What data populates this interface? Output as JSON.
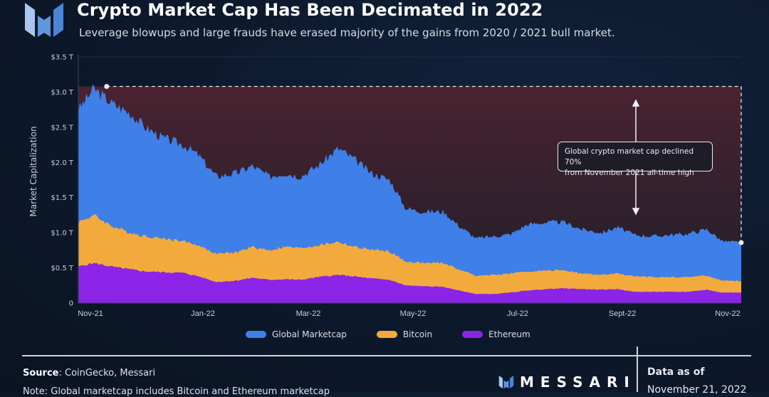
{
  "header": {
    "title": "Crypto Market Cap Has Been Decimated in 2022",
    "subtitle": "Leverage blowups and large frauds have erased majority of the gains from 2020 / 2021 bull market."
  },
  "annotation": {
    "text_line1": "Global crypto market cap declined 70%",
    "text_line2": "from November 2021 all-time high"
  },
  "footer": {
    "source_label": "Source",
    "source_text": ": CoinGecko, Messari",
    "note_text": "Note: Global marketcap includes Bitcoin and Ethereum marketcap",
    "brand": "MESSARI",
    "data_as_of_label": "Data as of",
    "data_as_of_date": "November 21, 2022"
  },
  "colors": {
    "global": "#3f7fe8",
    "bitcoin": "#f3aa3c",
    "ethereum": "#8b24e6",
    "drawdown": "#3a1e26",
    "background": "#0d1a2e"
  },
  "chart_data": {
    "type": "area",
    "title": "Crypto Market Cap Has Been Decimated in 2022",
    "xlabel": "",
    "ylabel": "Market Capitalization",
    "ylim": [
      0,
      3.5
    ],
    "yticks": [
      "0",
      "$0.5 T",
      "$1.0 T",
      "$1.5 T",
      "$2.0 T",
      "$2.5 T",
      "$3.0 T",
      "$3.5 T"
    ],
    "ytick_values": [
      0,
      0.5,
      1.0,
      1.5,
      2.0,
      2.5,
      3.0,
      3.5
    ],
    "xticks": [
      "Nov-21",
      "Jan-22",
      "Mar-22",
      "May-22",
      "Jul-22",
      "Sept-22",
      "Nov-22"
    ],
    "grid": true,
    "legend_position": "bottom",
    "x": [
      "2021-11-01",
      "2021-11-10",
      "2021-11-20",
      "2021-12-01",
      "2021-12-10",
      "2021-12-20",
      "2022-01-01",
      "2022-01-10",
      "2022-01-20",
      "2022-02-01",
      "2022-02-10",
      "2022-02-20",
      "2022-03-01",
      "2022-03-10",
      "2022-03-20",
      "2022-04-01",
      "2022-04-10",
      "2022-04-20",
      "2022-05-01",
      "2022-05-10",
      "2022-05-20",
      "2022-06-01",
      "2022-06-10",
      "2022-06-20",
      "2022-07-01",
      "2022-07-10",
      "2022-07-20",
      "2022-08-01",
      "2022-08-10",
      "2022-08-20",
      "2022-09-01",
      "2022-09-10",
      "2022-09-20",
      "2022-10-01",
      "2022-10-10",
      "2022-10-20",
      "2022-11-01",
      "2022-11-10",
      "2022-11-21"
    ],
    "series": [
      {
        "name": "Global Marketcap",
        "unit": "USD trillion",
        "values": [
          2.75,
          3.05,
          2.85,
          2.7,
          2.5,
          2.35,
          2.25,
          2.1,
          1.8,
          1.85,
          1.95,
          1.8,
          1.85,
          1.8,
          1.95,
          2.2,
          2.05,
          1.85,
          1.75,
          1.35,
          1.3,
          1.3,
          1.1,
          0.92,
          0.95,
          0.98,
          1.12,
          1.15,
          1.15,
          1.05,
          1.0,
          1.08,
          0.97,
          0.95,
          0.97,
          0.98,
          1.05,
          0.88,
          0.86
        ]
      },
      {
        "name": "Bitcoin",
        "unit": "USD trillion",
        "values": [
          1.15,
          1.25,
          1.1,
          1.0,
          0.95,
          0.92,
          0.88,
          0.82,
          0.7,
          0.72,
          0.8,
          0.75,
          0.8,
          0.78,
          0.82,
          0.87,
          0.8,
          0.76,
          0.73,
          0.59,
          0.57,
          0.57,
          0.48,
          0.39,
          0.4,
          0.42,
          0.45,
          0.46,
          0.47,
          0.42,
          0.4,
          0.42,
          0.38,
          0.37,
          0.37,
          0.37,
          0.39,
          0.32,
          0.31
        ]
      },
      {
        "name": "Ethereum",
        "unit": "USD trillion",
        "values": [
          0.52,
          0.57,
          0.52,
          0.48,
          0.45,
          0.44,
          0.43,
          0.38,
          0.3,
          0.32,
          0.36,
          0.33,
          0.34,
          0.33,
          0.37,
          0.4,
          0.38,
          0.35,
          0.33,
          0.25,
          0.24,
          0.23,
          0.18,
          0.13,
          0.13,
          0.15,
          0.18,
          0.2,
          0.21,
          0.2,
          0.19,
          0.2,
          0.16,
          0.16,
          0.16,
          0.16,
          0.19,
          0.15,
          0.15
        ]
      }
    ],
    "annotations": [
      {
        "type": "peak-marker",
        "date": "2021-11-10",
        "value": 3.08
      },
      {
        "type": "end-marker",
        "date": "2022-11-21",
        "value": 0.86
      },
      {
        "type": "callout",
        "text": "Global crypto market cap declined 70% from November 2021 all-time high"
      }
    ]
  },
  "legend": [
    {
      "label": "Global Marketcap",
      "color": "#3f7fe8"
    },
    {
      "label": "Bitcoin",
      "color": "#f3aa3c"
    },
    {
      "label": "Ethereum",
      "color": "#8b24e6"
    }
  ]
}
